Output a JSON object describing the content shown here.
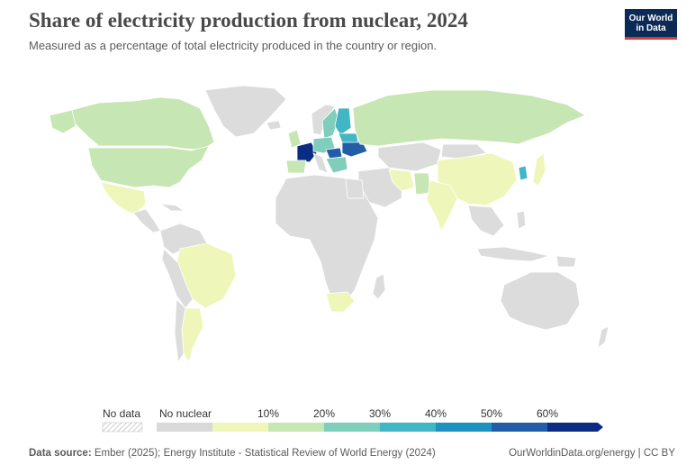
{
  "header": {
    "title": "Share of electricity production from nuclear, 2024",
    "subtitle": "Measured as a percentage of total electricity produced in the country or region."
  },
  "logo": {
    "line1": "Our World",
    "line2": "in Data"
  },
  "colors": {
    "no_data_hatch": "#cccccc",
    "no_nuclear": "#d9d9d9",
    "bin_0_10": "#eef7b9",
    "bin_10_20": "#c6e6b3",
    "bin_20_30": "#7fcdbb",
    "bin_30_40": "#41b6c4",
    "bin_40_50": "#1d91c0",
    "bin_50_60": "#225ea8",
    "bin_60_plus": "#0c2c84",
    "land_default": "#dcdcdc",
    "border": "#ffffff"
  },
  "legend": {
    "no_data_label": "No data",
    "no_nuclear_label": "No nuclear",
    "ticks": [
      "10%",
      "20%",
      "30%",
      "40%",
      "50%",
      "60%"
    ]
  },
  "footer": {
    "source_label": "Data source:",
    "source_text": "Ember (2025); Energy Institute - Statistical Review of World Energy (2024)",
    "right": "OurWorldinData.org/energy | CC BY"
  }
}
